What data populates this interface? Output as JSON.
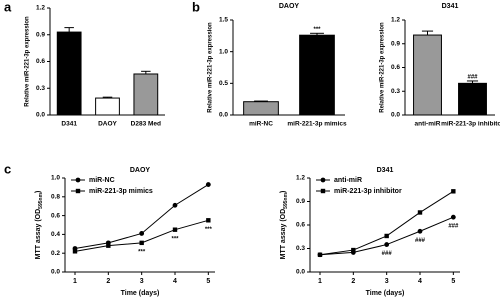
{
  "chart_data": [
    {
      "type": "bar",
      "panel": "a",
      "ylabel": "Relative miR-221-3p expression",
      "categories": [
        "D341",
        "DAOY",
        "D283 Med"
      ],
      "values": [
        0.93,
        0.19,
        0.46
      ],
      "errors": [
        0.05,
        0.01,
        0.03
      ],
      "colors": [
        "#000000",
        "#ffffff",
        "#999999"
      ],
      "ylim": [
        0,
        1.2
      ],
      "yticks": [
        {
          "value": 0,
          "label": "0.0"
        },
        0.3,
        0.6,
        0.9,
        1.2
      ]
    },
    {
      "type": "bar",
      "panel": "b",
      "title": "DAOY",
      "ylabel": "Relative miR-221-3p expression",
      "categories": [
        "miR-NC",
        "miR-221-3p mimics"
      ],
      "values": [
        0.21,
        1.26
      ],
      "errors": [
        0.01,
        0.03
      ],
      "colors": [
        "#999999",
        "#000000"
      ],
      "annotations": [
        {
          "text": "***",
          "x": "miR-221-3p mimics"
        }
      ],
      "ylim": [
        0,
        1.5
      ],
      "yticks": [
        {
          "value": 0,
          "label": "0.0"
        },
        0.5,
        {
          "value": 1,
          "label": "1.0"
        },
        1.5
      ]
    },
    {
      "type": "bar",
      "title": "D341",
      "ylabel": "Relative miR-221-3p expression",
      "categories": [
        "anti-miR",
        "miR-221-3p inhibitor"
      ],
      "values": [
        1.01,
        0.4
      ],
      "errors": [
        0.05,
        0.03
      ],
      "colors": [
        "#999999",
        "#000000"
      ],
      "annotations": [
        {
          "text": "###",
          "x": "miR-221-3p inhibitor"
        }
      ],
      "ylim": [
        0,
        1.2
      ],
      "yticks": [
        {
          "value": 0,
          "label": "0.0"
        },
        0.3,
        0.6,
        0.9,
        1.2
      ]
    },
    {
      "type": "line",
      "panel": "c",
      "title": "DAOY",
      "xlabel": "Time (days)",
      "ylabel": [
        "MTT assay (OD",
        "595nm",
        ")"
      ],
      "x": [
        1,
        2,
        3,
        4,
        5
      ],
      "xlim": [
        0.7,
        5.2
      ],
      "xticks": [
        1,
        2,
        3,
        4,
        5
      ],
      "series": [
        {
          "name": "miR-NC",
          "color": "#000000",
          "marker": "circle",
          "values": [
            0.25,
            0.31,
            0.41,
            0.71,
            0.93
          ]
        },
        {
          "name": "miR-221-3p mimics",
          "color": "#000000",
          "marker": "square",
          "values": [
            0.22,
            0.28,
            0.31,
            0.45,
            0.55
          ]
        }
      ],
      "annotations": [
        {
          "text": "***",
          "x": 3,
          "series": "miR-221-3p mimics"
        },
        {
          "text": "***",
          "x": 4,
          "series": "miR-221-3p mimics"
        },
        {
          "text": "***",
          "x": 5,
          "series": "miR-221-3p mimics"
        }
      ],
      "ylim": [
        0,
        1.0
      ],
      "yticks": [
        {
          "value": 0,
          "label": "0.0"
        },
        0.2,
        0.4,
        0.6,
        0.8,
        {
          "value": 1,
          "label": "1.0"
        }
      ]
    },
    {
      "type": "line",
      "title": "D341",
      "xlabel": "Time (days)",
      "ylabel": [
        "MTT assay (OD",
        "595nm",
        ")"
      ],
      "x": [
        1,
        2,
        3,
        4,
        5
      ],
      "xlim": [
        0.7,
        5.2
      ],
      "xticks": [
        1,
        2,
        3,
        4,
        5
      ],
      "series": [
        {
          "name": "anti-miR",
          "color": "#000000",
          "marker": "circle",
          "values": [
            0.22,
            0.25,
            0.35,
            0.52,
            0.7
          ]
        },
        {
          "name": "miR-221-3p inhibitor",
          "color": "#000000",
          "marker": "square",
          "values": [
            0.22,
            0.28,
            0.46,
            0.76,
            1.03
          ]
        }
      ],
      "annotations": [
        {
          "text": "###",
          "x": 3,
          "series": "anti-miR"
        },
        {
          "text": "###",
          "x": 4,
          "series": "anti-miR"
        },
        {
          "text": "###",
          "x": 5,
          "series": "anti-miR"
        }
      ],
      "ylim": [
        0,
        1.2
      ],
      "yticks": [
        {
          "value": 0,
          "label": "0.0"
        },
        0.3,
        0.6,
        0.9,
        1.2
      ]
    }
  ]
}
